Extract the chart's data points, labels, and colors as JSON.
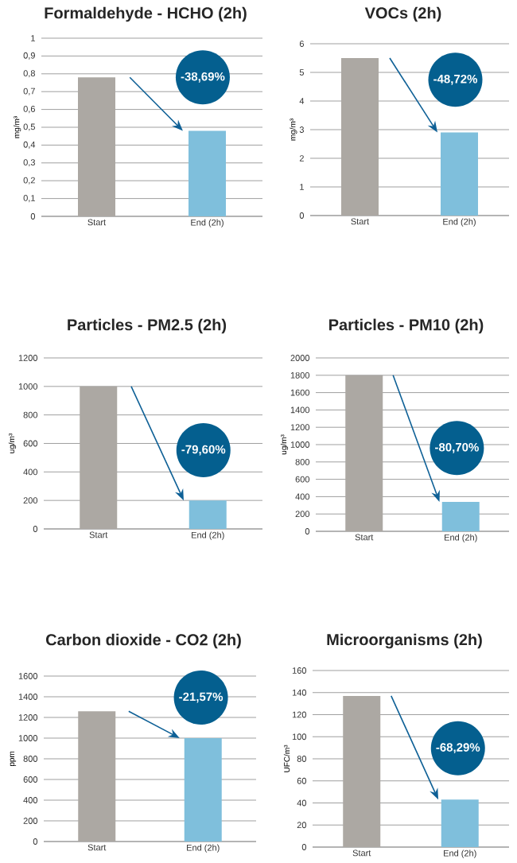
{
  "chart_data": [
    {
      "type": "bar",
      "title": "Formaldehyde - HCHO (2h)",
      "ylabel": "mg/m³",
      "categories": [
        "Start",
        "End (2h)"
      ],
      "values": [
        0.78,
        0.48
      ],
      "colors": [
        "#aca8a3",
        "#7fbfdc"
      ],
      "ylim": [
        0,
        1
      ],
      "yticks": [
        0,
        {
          "value": 0.1,
          "label": "0,1"
        },
        {
          "value": 0.2,
          "label": "0,2"
        },
        {
          "value": 0.3,
          "label": "0,3"
        },
        {
          "value": 0.4,
          "label": "0,4"
        },
        {
          "value": 0.5,
          "label": "0,5"
        },
        {
          "value": 0.6,
          "label": "0,6"
        },
        {
          "value": 0.7,
          "label": "0,7"
        },
        {
          "value": 0.8,
          "label": "0,8"
        },
        {
          "value": 0.9,
          "label": "0,9"
        },
        1
      ],
      "grid": "y",
      "annotations": [
        "-38,69%"
      ]
    },
    {
      "type": "bar",
      "title": "VOCs (2h)",
      "ylabel": "mg/m³",
      "categories": [
        "Start",
        "End (2h)"
      ],
      "values": [
        5.5,
        2.9
      ],
      "colors": [
        "#aca8a3",
        "#7fbfdc"
      ],
      "ylim": [
        0,
        6
      ],
      "yticks": [
        0,
        1,
        2,
        3,
        4,
        5,
        6
      ],
      "grid": "y",
      "annotations": [
        "-48,72%"
      ]
    },
    {
      "type": "bar",
      "title": "Particles - PM2.5 (2h)",
      "ylabel": "ug/m³",
      "categories": [
        "Start",
        "End (2h)"
      ],
      "values": [
        1000,
        200
      ],
      "colors": [
        "#aca8a3",
        "#7fbfdc"
      ],
      "ylim": [
        0,
        1200
      ],
      "yticks": [
        0,
        200,
        400,
        600,
        800,
        1000,
        1200
      ],
      "grid": "y",
      "annotations": [
        "-79,60%"
      ]
    },
    {
      "type": "bar",
      "title": "Particles - PM10 (2h)",
      "ylabel": "ug/m³",
      "categories": [
        "Start",
        "End (2h)"
      ],
      "values": [
        1800,
        340
      ],
      "colors": [
        "#aca8a3",
        "#7fbfdc"
      ],
      "ylim": [
        0,
        2000
      ],
      "yticks": [
        0,
        200,
        400,
        600,
        800,
        1000,
        1200,
        1400,
        1600,
        1800,
        2000
      ],
      "grid": "y",
      "annotations": [
        "-80,70%"
      ]
    },
    {
      "type": "bar",
      "title": "Carbon dioxide - CO2 (2h)",
      "ylabel": "ppm",
      "categories": [
        "Start",
        "End (2h)"
      ],
      "values": [
        1260,
        1000
      ],
      "colors": [
        "#aca8a3",
        "#7fbfdc"
      ],
      "ylim": [
        0,
        1600
      ],
      "yticks": [
        0,
        200,
        400,
        600,
        800,
        1000,
        1200,
        1400,
        1600
      ],
      "grid": "y",
      "annotations": [
        "-21,57%"
      ]
    },
    {
      "type": "bar",
      "title": "Microorganisms (2h)",
      "ylabel": "UFC/m³",
      "categories": [
        "Start",
        "End (2h)"
      ],
      "values": [
        137,
        43
      ],
      "colors": [
        "#aca8a3",
        "#7fbfdc"
      ],
      "ylim": [
        0,
        160
      ],
      "yticks": [
        0,
        20,
        40,
        60,
        80,
        100,
        120,
        140,
        160
      ],
      "grid": "y",
      "annotations": [
        "-68,29%"
      ]
    }
  ]
}
